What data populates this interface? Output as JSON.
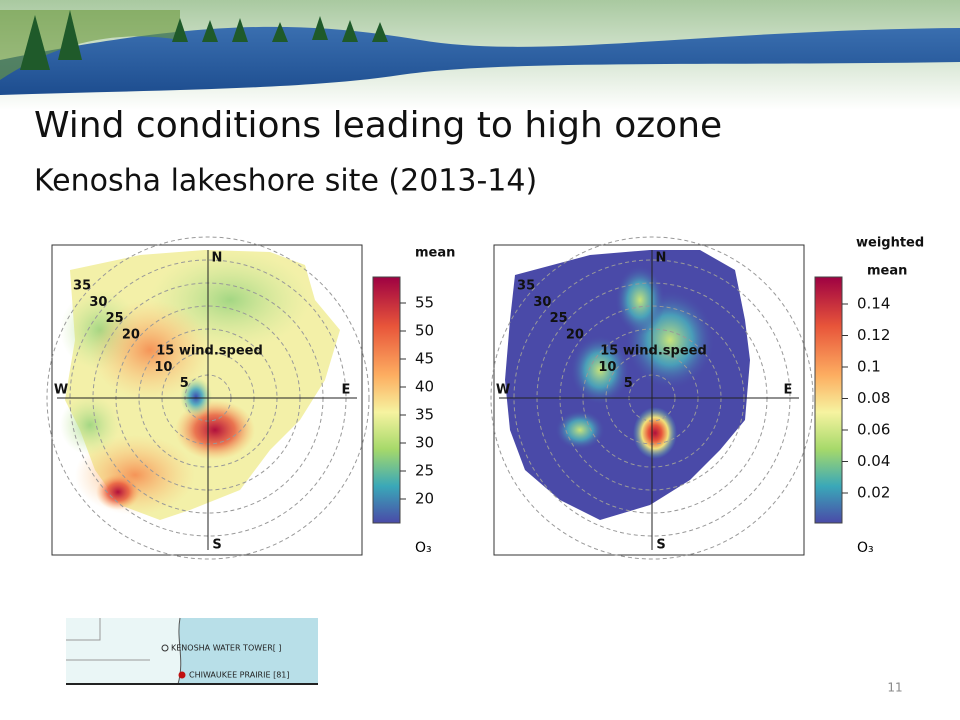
{
  "title": "Wind conditions leading to high ozone",
  "subtitle": "Kenosha lakeshore site (2013-14)",
  "plots": [
    {
      "directions": [
        "N",
        "E",
        "S",
        "W"
      ],
      "speed_labels": [
        "35",
        "30",
        "25",
        "20",
        "15 wind.speed",
        "10",
        "5"
      ],
      "legend_title": [
        "mean"
      ],
      "legend_ticks": [
        "55",
        "50",
        "45",
        "40",
        "35",
        "30",
        "25",
        "20"
      ],
      "pollutant": "O₃"
    },
    {
      "directions": [
        "N",
        "E",
        "S",
        "W"
      ],
      "speed_labels": [
        "35",
        "30",
        "25",
        "20",
        "15 wind.speed",
        "10",
        "5"
      ],
      "legend_title": [
        "weighted",
        "mean"
      ],
      "legend_ticks": [
        "0.14",
        "0.12",
        "0.1",
        "0.08",
        "0.06",
        "0.04",
        "0.02"
      ],
      "pollutant": "O₃"
    }
  ],
  "map": {
    "labels": [
      "KENOSHA WATER TOWER[ ]",
      "CHIWAUKEE PRAIRIE [81]"
    ]
  },
  "page_number": "11"
}
